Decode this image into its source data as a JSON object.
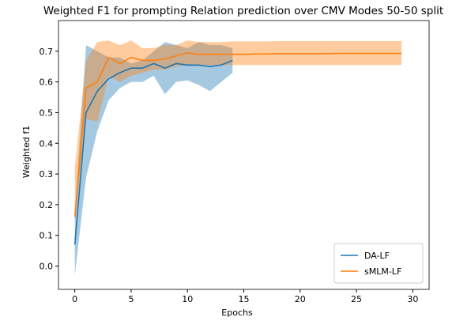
{
  "chart_data": {
    "type": "line",
    "title": "Weighted F1 for prompting Relation prediction  over CMV Modes 50-50 split",
    "xlabel": "Epochs",
    "ylabel": "Weighted f1",
    "xlim": [
      -1.45,
      31.45
    ],
    "ylim": [
      -0.076,
      0.8
    ],
    "xticks": [
      0,
      5,
      10,
      15,
      20,
      25,
      30
    ],
    "yticks": [
      {
        "value": 0,
        "label": "0.0"
      },
      0.1,
      0.2,
      0.3,
      0.4,
      0.5,
      0.6,
      0.7
    ],
    "legend": "lower right",
    "series": [
      {
        "name": "DA-LF",
        "color": "#1f77b4",
        "x": [
          0,
          1,
          2,
          3,
          4,
          5,
          6,
          7,
          8,
          9,
          10,
          11,
          12,
          13,
          14
        ],
        "values": [
          0.07,
          0.5,
          0.57,
          0.61,
          0.63,
          0.645,
          0.645,
          0.66,
          0.645,
          0.66,
          0.655,
          0.655,
          0.65,
          0.655,
          0.67
        ],
        "lower": [
          -0.03,
          0.29,
          0.44,
          0.54,
          0.58,
          0.6,
          0.6,
          0.62,
          0.56,
          0.6,
          0.605,
          0.59,
          0.57,
          0.6,
          0.63
        ],
        "upper": [
          0.17,
          0.72,
          0.7,
          0.68,
          0.68,
          0.66,
          0.67,
          0.7,
          0.73,
          0.72,
          0.71,
          0.73,
          0.72,
          0.72,
          0.71
        ]
      },
      {
        "name": "sMLM-LF",
        "color": "#ff7f0e",
        "x": [
          0,
          1,
          2,
          3,
          4,
          5,
          6,
          7,
          8,
          9,
          10,
          11,
          12,
          13,
          14,
          15,
          16,
          17,
          18,
          19,
          20,
          21,
          22,
          23,
          24,
          25,
          26,
          27,
          28,
          29
        ],
        "values": [
          0.16,
          0.58,
          0.6,
          0.68,
          0.66,
          0.68,
          0.67,
          0.67,
          0.675,
          0.685,
          0.695,
          0.69,
          0.69,
          0.69,
          0.69,
          0.69,
          0.691,
          0.691,
          0.692,
          0.692,
          0.692,
          0.692,
          0.692,
          0.693,
          0.693,
          0.693,
          0.693,
          0.693,
          0.693,
          0.693
        ],
        "lower": [
          0.15,
          0.48,
          0.47,
          0.62,
          0.6,
          0.62,
          0.63,
          0.64,
          0.64,
          0.65,
          0.655,
          0.655,
          0.655,
          0.655,
          0.655,
          0.655,
          0.655,
          0.655,
          0.655,
          0.655,
          0.655,
          0.655,
          0.655,
          0.655,
          0.655,
          0.655,
          0.655,
          0.655,
          0.655,
          0.655
        ],
        "upper": [
          0.32,
          0.67,
          0.73,
          0.735,
          0.72,
          0.735,
          0.71,
          0.71,
          0.72,
          0.72,
          0.735,
          0.73,
          0.73,
          0.73,
          0.732,
          0.732,
          0.732,
          0.732,
          0.733,
          0.733,
          0.733,
          0.733,
          0.733,
          0.733,
          0.733,
          0.733,
          0.733,
          0.733,
          0.733,
          0.733
        ]
      }
    ]
  }
}
